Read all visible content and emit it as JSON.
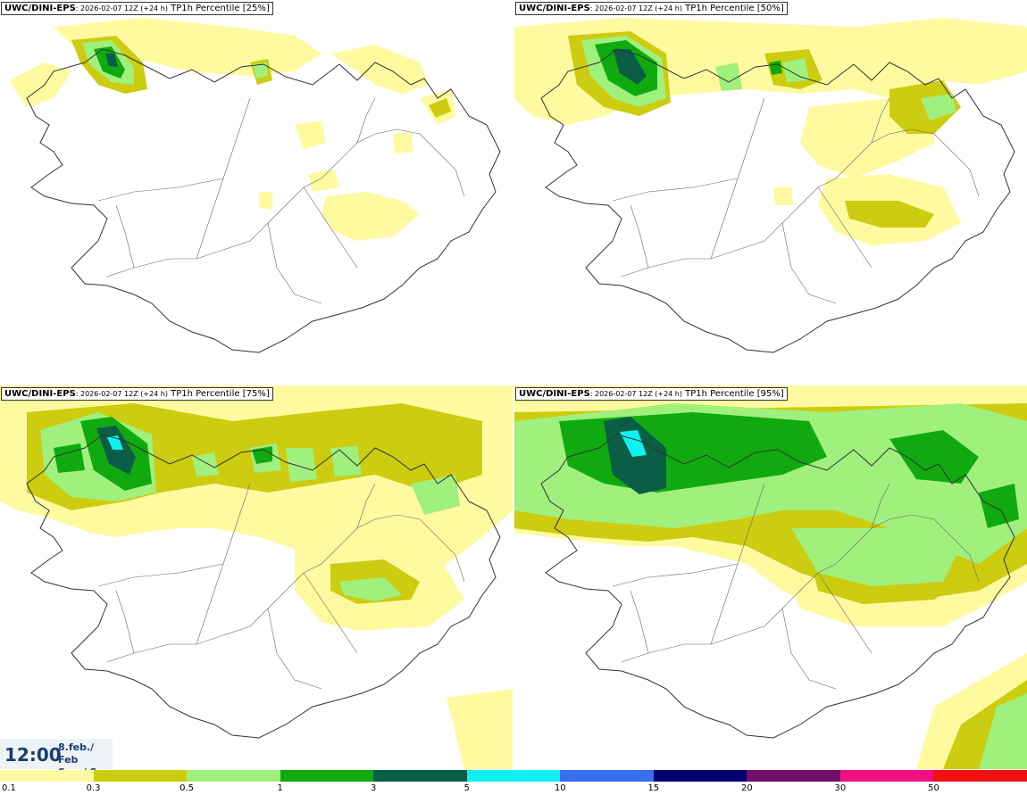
{
  "panels": [
    {
      "model": "UWC/DINI-EPS",
      "run": ": 2026-02-07 12Z (+24 h)",
      "product": " TP1h Percentile [25%]"
    },
    {
      "model": "UWC/DINI-EPS",
      "run": ": 2026-02-07 12Z (+24 h)",
      "product": " TP1h Percentile [50%]"
    },
    {
      "model": "UWC/DINI-EPS",
      "run": ": 2026-02-07 12Z (+24 h)",
      "product": " TP1h Percentile [75%]"
    },
    {
      "model": "UWC/DINI-EPS",
      "run": ": 2026-02-07 12Z (+24 h)",
      "product": " TP1h Percentile [95%]"
    }
  ],
  "time_box": {
    "time": "12:00",
    "date_line1": "8.feb./ Feb",
    "date_line2": "Sun./ Sun"
  },
  "legend": {
    "colors": [
      "#fffaa0",
      "#cccc10",
      "#a0f07e",
      "#10aa10",
      "#0a5e45",
      "#10f0f0",
      "#3a6ef0",
      "#000070",
      "#70106a",
      "#f01080",
      "#f01010"
    ],
    "ticks": [
      "0.1",
      "0.3",
      "0.5",
      "1",
      "3",
      "5",
      "10",
      "15",
      "20",
      "30",
      "50"
    ]
  },
  "colors": {
    "land_border": "#333333",
    "roads": "#666666",
    "title_text": "#1a3d6e"
  }
}
